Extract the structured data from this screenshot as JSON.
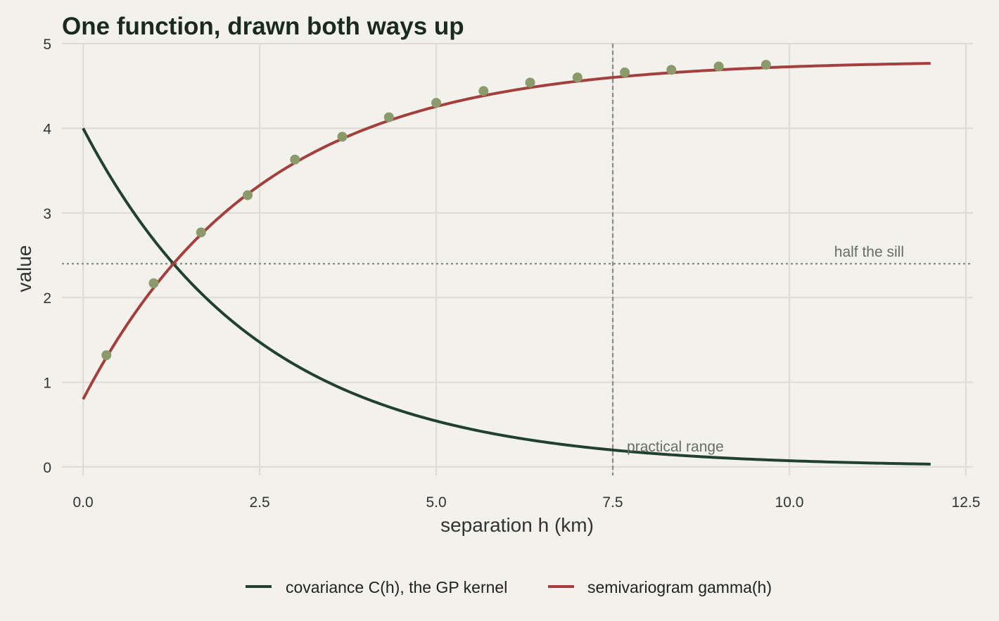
{
  "chart_data": {
    "type": "line",
    "title": "One function, drawn both ways up",
    "xlabel": "separation h (km)",
    "ylabel": "value",
    "xlim": [
      -0.3,
      12.6
    ],
    "ylim": [
      -0.1,
      5.0
    ],
    "x_ticks": [
      0,
      2.5,
      5,
      7.5,
      10,
      12.5
    ],
    "x_tick_labels": [
      "0.0",
      "2.5",
      "5.0",
      "7.5",
      "10.0",
      "12.5"
    ],
    "y_ticks": [
      0,
      1,
      2,
      3,
      4,
      5
    ],
    "y_tick_labels": [
      "0",
      "1",
      "2",
      "3",
      "4",
      "5"
    ],
    "grid": true,
    "legend_position": "bottom",
    "model": {
      "nugget": 0.8,
      "sill": 4.8,
      "practical_range_km": 7.5,
      "x_max": 12
    },
    "series": [
      {
        "name": "covariance C(h), the GP kernel",
        "kind": "line",
        "color": "#21402e"
      },
      {
        "name": "semivariogram gamma(h)",
        "kind": "line",
        "color": "#a3403e"
      },
      {
        "kind": "points",
        "color": "#8a9a6a",
        "x": [
          0.33,
          1.0,
          1.67,
          2.33,
          3.0,
          3.67,
          4.33,
          5.0,
          5.67,
          6.33,
          7.0,
          7.67,
          8.33,
          9.0,
          9.67
        ],
        "y": [
          1.32,
          2.17,
          2.77,
          3.21,
          3.63,
          3.9,
          4.13,
          4.3,
          4.44,
          4.54,
          4.6,
          4.66,
          4.69,
          4.73,
          4.75
        ]
      }
    ],
    "reference_lines": [
      {
        "orientation": "horizontal",
        "value": 2.4,
        "label": "half the sill"
      },
      {
        "orientation": "vertical",
        "value": 7.5,
        "label": "practical range"
      }
    ]
  }
}
